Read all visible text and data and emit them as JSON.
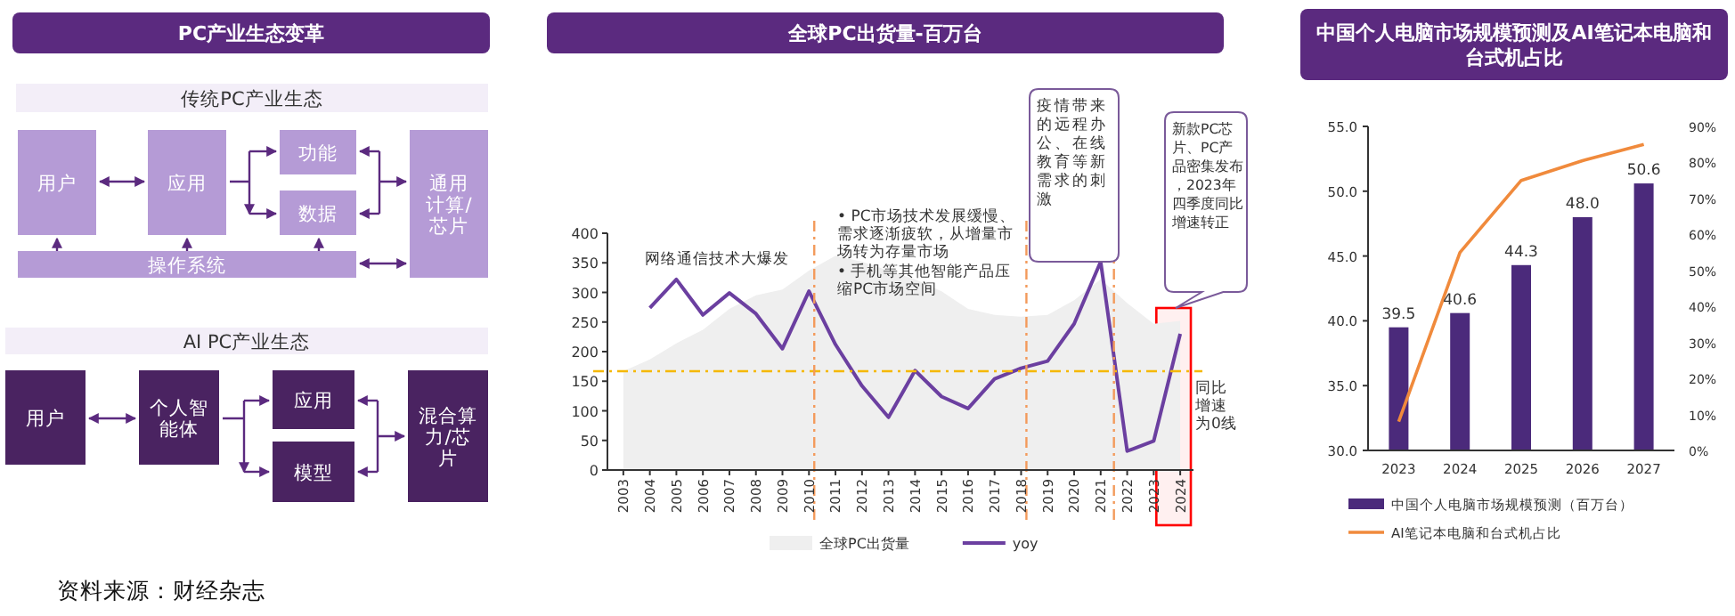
{
  "chart_data": [
    {
      "type": "other",
      "title": "PC产业生态变革",
      "annotations": [
        "传统PC产业生态",
        "用户",
        "应用",
        "功能",
        "数据",
        "通用计算/芯片",
        "操作系统",
        "AI PC产业生态",
        "用户",
        "个人智能体",
        "应用",
        "模型",
        "混合算力/芯片",
        "资料来源：财经杂志"
      ]
    },
    {
      "type": "line",
      "title": "全球PC出货量-百万台",
      "x": [
        2003,
        2004,
        2005,
        2006,
        2007,
        2008,
        2009,
        2010,
        2011,
        2012,
        2013,
        2014,
        2015,
        2016,
        2017,
        2018,
        2019,
        2020,
        2021,
        2022,
        2023,
        2024
      ],
      "series": [
        {
          "name": "全球PC出货量",
          "type": "area",
          "color": "#efefef",
          "values": [
            167,
            187,
            214,
            237,
            272,
            295,
            305,
            337,
            362,
            352,
            337,
            322,
            302,
            272,
            262,
            259,
            262,
            287,
            322,
            282,
            247,
            252
          ]
        },
        {
          "name": "yoy",
          "type": "line",
          "color": "#6b3fa0",
          "values": [
            null,
            274,
            322,
            262,
            299,
            264,
            205,
            302,
            212,
            142,
            89,
            168,
            124,
            104,
            154,
            172,
            184,
            247,
            352,
            32,
            49,
            230
          ]
        }
      ],
      "xlim": [
        2002.4,
        2024.5
      ],
      "xticks": [
        2003,
        2004,
        2005,
        2006,
        2007,
        2008,
        2009,
        2010,
        2011,
        2012,
        2013,
        2014,
        2015,
        2016,
        2017,
        2018,
        2019,
        2020,
        2021,
        2022,
        2023,
        2024
      ],
      "ylim": [
        0,
        400
      ],
      "yticks": [
        0,
        50,
        100,
        150,
        200,
        250,
        300,
        350,
        400
      ],
      "ref_lines": [
        {
          "axis": "y",
          "value": 167,
          "label": "同比增速为0线",
          "color": "#f5b800",
          "line_style": "dashed"
        },
        {
          "axis": "x",
          "value": 2010.2,
          "color": "#f39a5b",
          "line_style": "dashed"
        },
        {
          "axis": "x",
          "value": 2018.2,
          "color": "#f39a5b",
          "line_style": "dashed"
        },
        {
          "axis": "x",
          "value": 2021.5,
          "color": "#f39a5b",
          "line_style": "dashed"
        }
      ],
      "bands": [
        {
          "axis": "x",
          "from": 2023.1,
          "to": 2024.4,
          "color": "#ff0000"
        }
      ],
      "annotations": [
        "网络通信技术大爆发",
        "• PC市场技术发展缓慢、需求逐渐疲软，从增量市场转为存量市场",
        "• 手机等其他智能产品压缩PC市场空间",
        "疫情带来的远程办公、在线教育等新需求的刺激",
        "新款PC芯片、PC产品密集发布，2023年四季度同比增速转正"
      ],
      "legend": "bottom",
      "marker": "none",
      "line_style": "solid",
      "grid": false
    },
    {
      "type": "bar",
      "title": "中国个人电脑市场规模预测及AI笔记本电脑和台式机占比",
      "categories": [
        "2023",
        "2024",
        "2025",
        "2026",
        "2027"
      ],
      "series": [
        {
          "name": "中国个人电脑市场规模预测（百万台）",
          "type": "bar",
          "color": "#4b2a7b",
          "values": [
            39.5,
            40.6,
            44.3,
            48.0,
            50.6
          ],
          "value_labels": [
            "39.5",
            "40.6",
            "44.3",
            "48.0",
            "50.6"
          ]
        },
        {
          "name": "AI笔记本电脑和台式机占比",
          "type": "line",
          "axis": "y2",
          "color": "#f08a3c",
          "values": [
            8,
            55,
            75,
            80.5,
            85
          ]
        }
      ],
      "ylim": [
        30,
        55
      ],
      "yticks": [
        {
          "value": 30,
          "label": "30.0"
        },
        {
          "value": 35,
          "label": "35.0"
        },
        {
          "value": 40,
          "label": "40.0"
        },
        {
          "value": 45,
          "label": "45.0"
        },
        {
          "value": 50,
          "label": "50.0"
        },
        {
          "value": 55,
          "label": "55.0"
        }
      ],
      "y2lim": [
        0,
        90
      ],
      "y2ticks": [
        {
          "value": 0,
          "label": "0%"
        },
        {
          "value": 10,
          "label": "10%"
        },
        {
          "value": 20,
          "label": "20%"
        },
        {
          "value": 30,
          "label": "30%"
        },
        {
          "value": 40,
          "label": "40%"
        },
        {
          "value": 50,
          "label": "50%"
        },
        {
          "value": 60,
          "label": "60%"
        },
        {
          "value": 70,
          "label": "70%"
        },
        {
          "value": 80,
          "label": "80%"
        },
        {
          "value": 90,
          "label": "90%"
        }
      ],
      "legend": "bottom",
      "marker": "none",
      "grid": false
    }
  ]
}
